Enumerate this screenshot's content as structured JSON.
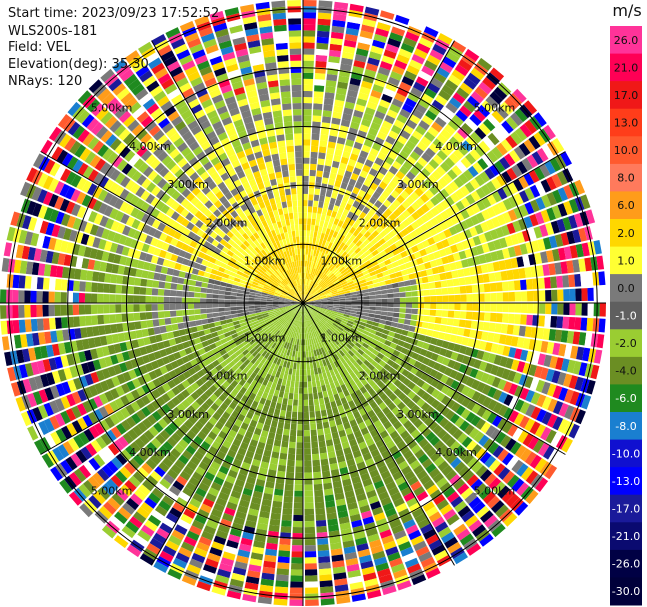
{
  "header": {
    "start_time": "Start time: 2023/09/23 17:52:52",
    "instrument": "WLS200s-181",
    "field": "Field: VEL",
    "elevation": "Elevation(deg): 35.30",
    "nrays": "NRays: 120"
  },
  "colorbar": {
    "unit": "m/s",
    "levels": [
      {
        "label": "26.0",
        "color": "#ff3399"
      },
      {
        "label": "21.0",
        "color": "#ff0055"
      },
      {
        "label": "17.0",
        "color": "#f01818"
      },
      {
        "label": "13.0",
        "color": "#ff3d1a"
      },
      {
        "label": "10.0",
        "color": "#ff5a2e"
      },
      {
        "label": "8.0",
        "color": "#ff7a5c"
      },
      {
        "label": "6.0",
        "color": "#ff9c1a"
      },
      {
        "label": "2.0",
        "color": "#ffd700"
      },
      {
        "label": "1.0",
        "color": "#ffff33"
      },
      {
        "label": "0.0",
        "color": "#7a7a7a"
      },
      {
        "label": "-1.0",
        "color": "#5f5f5f"
      },
      {
        "label": "-2.0",
        "color": "#9acd32"
      },
      {
        "label": "-4.0",
        "color": "#6b8e23"
      },
      {
        "label": "-6.0",
        "color": "#1f8a1f"
      },
      {
        "label": "-8.0",
        "color": "#1a7fd0"
      },
      {
        "label": "-10.0",
        "color": "#1010d0"
      },
      {
        "label": "-13.0",
        "color": "#0000ff"
      },
      {
        "label": "-17.0",
        "color": "#1a1a9a"
      },
      {
        "label": "-21.0",
        "color": "#0a0a70"
      },
      {
        "label": "-26.0",
        "color": "#000044"
      },
      {
        "label": "-30.0",
        "color": "#00003a"
      }
    ]
  },
  "range_labels": {
    "r1": "1.00km",
    "r2": "2.00km",
    "r3": "3.00km",
    "r4": "4.00km",
    "r5": "5.00km"
  },
  "map": {
    "nrays": 120,
    "ngates": 50,
    "max_range_km": 5.15,
    "ring_km": [
      1,
      2,
      3,
      4,
      5
    ],
    "spoke_deg": [
      0,
      30,
      60,
      90,
      120,
      150,
      180,
      210,
      240,
      270,
      300,
      330
    ],
    "noise_colors": [
      "#ff3399",
      "#ff0055",
      "#f01818",
      "#ff5a2e",
      "#ff9c1a",
      "#ffd700",
      "#ffff33",
      "#7a7a7a",
      "#9acd32",
      "#6b8e23",
      "#1f8a1f",
      "#1a7fd0",
      "#0000ff",
      "#1a1a9a",
      "#00003a",
      "#ffffff"
    ]
  }
}
